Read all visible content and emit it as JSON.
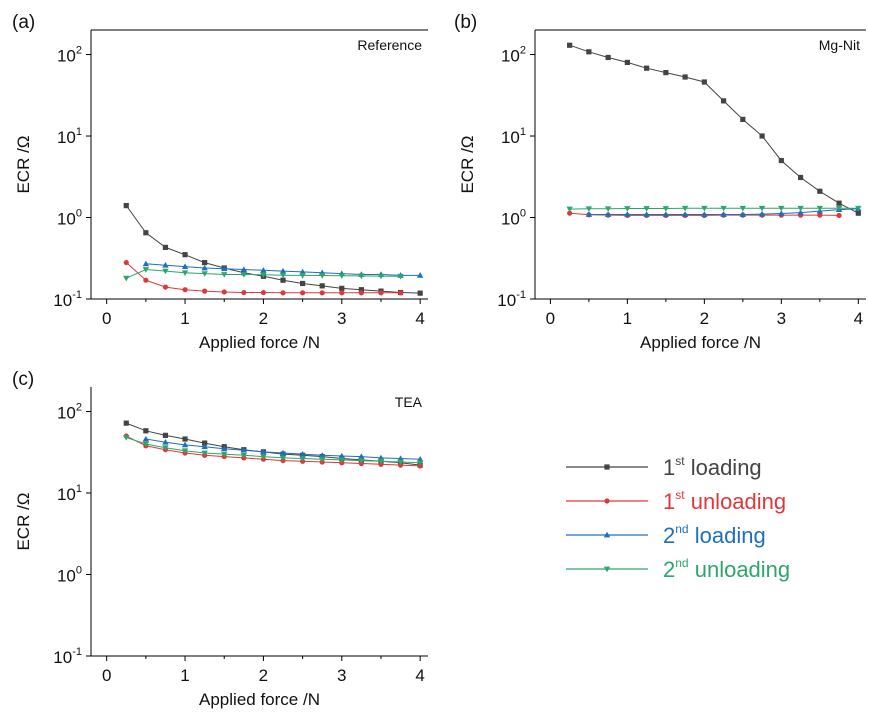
{
  "series_styles": [
    {
      "color": "#444444",
      "marker": "square"
    },
    {
      "color": "#e0383a",
      "marker": "circle"
    },
    {
      "color": "#1f6fc0",
      "marker": "triangle-up"
    },
    {
      "color": "#2ea66b",
      "marker": "triangle-down"
    }
  ],
  "legend": {
    "entries": [
      {
        "num": "1",
        "sup": "st",
        "word": "loading",
        "color": "#444444"
      },
      {
        "num": "1",
        "sup": "st",
        "word": "unloading",
        "color": "#e0383a"
      },
      {
        "num": "2",
        "sup": "nd",
        "word": "loading",
        "color": "#1f6fc0"
      },
      {
        "num": "2",
        "sup": "nd",
        "word": "unloading",
        "color": "#2ea66b"
      }
    ]
  },
  "chart_data": [
    {
      "type": "line",
      "panel_label": "(a)",
      "annotation": "Reference",
      "xlabel": "Applied force /N",
      "ylabel": "ECR /Ω",
      "yscale": "log",
      "xlim": [
        -0.2,
        4.1
      ],
      "ylim": [
        0.1,
        200
      ],
      "xticks": [
        0,
        1,
        2,
        3,
        4
      ],
      "yticks": [
        {
          "base": "10",
          "exp": "2",
          "v": 100
        },
        {
          "base": "10",
          "exp": "1",
          "v": 10
        },
        {
          "base": "10",
          "exp": "0",
          "v": 1
        },
        {
          "base": "10",
          "exp": "-1",
          "v": 0.1
        }
      ],
      "series": [
        {
          "x": [
            0.25,
            0.5,
            0.75,
            1.0,
            1.25,
            1.5,
            1.75,
            2.0,
            2.25,
            2.5,
            2.75,
            3.0,
            3.25,
            3.5,
            3.75,
            4.0
          ],
          "values": [
            1.4,
            0.65,
            0.43,
            0.35,
            0.28,
            0.24,
            0.21,
            0.19,
            0.17,
            0.155,
            0.145,
            0.135,
            0.13,
            0.125,
            0.12,
            0.118
          ]
        },
        {
          "x": [
            0.25,
            0.5,
            0.75,
            1.0,
            1.25,
            1.5,
            1.75,
            2.0,
            2.25,
            2.5,
            2.75,
            3.0,
            3.25,
            3.5,
            3.75
          ],
          "values": [
            0.28,
            0.17,
            0.14,
            0.13,
            0.125,
            0.122,
            0.12,
            0.12,
            0.119,
            0.119,
            0.119,
            0.119,
            0.119,
            0.119,
            0.119
          ]
        },
        {
          "x": [
            0.5,
            0.75,
            1.0,
            1.25,
            1.5,
            1.75,
            2.0,
            2.25,
            2.5,
            2.75,
            3.0,
            3.25,
            3.5,
            3.75,
            4.0
          ],
          "values": [
            0.27,
            0.26,
            0.25,
            0.24,
            0.235,
            0.23,
            0.225,
            0.22,
            0.215,
            0.21,
            0.205,
            0.2,
            0.2,
            0.195,
            0.195
          ]
        },
        {
          "x": [
            0.25,
            0.5,
            0.75,
            1.0,
            1.25,
            1.5,
            1.75,
            2.0,
            2.25,
            2.5,
            2.75,
            3.0,
            3.25,
            3.5,
            3.75
          ],
          "values": [
            0.18,
            0.23,
            0.22,
            0.21,
            0.205,
            0.2,
            0.2,
            0.198,
            0.196,
            0.195,
            0.194,
            0.193,
            0.192,
            0.191,
            0.19
          ]
        }
      ]
    },
    {
      "type": "line",
      "panel_label": "(b)",
      "annotation": "Mg-Nit",
      "xlabel": "Applied force /N",
      "ylabel": "ECR /Ω",
      "yscale": "log",
      "xlim": [
        -0.2,
        4.1
      ],
      "ylim": [
        0.1,
        200
      ],
      "xticks": [
        0,
        1,
        2,
        3,
        4
      ],
      "yticks": [
        {
          "base": "10",
          "exp": "2",
          "v": 100
        },
        {
          "base": "10",
          "exp": "1",
          "v": 10
        },
        {
          "base": "10",
          "exp": "0",
          "v": 1
        },
        {
          "base": "10",
          "exp": "-1",
          "v": 0.1
        }
      ],
      "series": [
        {
          "x": [
            0.25,
            0.5,
            0.75,
            1.0,
            1.25,
            1.5,
            1.75,
            2.0,
            2.25,
            2.5,
            2.75,
            3.0,
            3.25,
            3.5,
            3.75,
            4.0
          ],
          "values": [
            130,
            108,
            92,
            80,
            68,
            60,
            53,
            46,
            27,
            16,
            10,
            5,
            3.1,
            2.1,
            1.5,
            1.13
          ]
        },
        {
          "x": [
            0.25,
            0.5,
            0.75,
            1.0,
            1.25,
            1.5,
            1.75,
            2.0,
            2.25,
            2.5,
            2.75,
            3.0,
            3.25,
            3.5,
            3.75
          ],
          "values": [
            1.13,
            1.08,
            1.07,
            1.06,
            1.06,
            1.06,
            1.06,
            1.06,
            1.07,
            1.07,
            1.07,
            1.07,
            1.07,
            1.07,
            1.06
          ]
        },
        {
          "x": [
            0.5,
            0.75,
            1.0,
            1.25,
            1.5,
            1.75,
            2.0,
            2.25,
            2.5,
            2.75,
            3.0,
            3.25,
            3.5,
            3.75,
            4.0
          ],
          "values": [
            1.09,
            1.09,
            1.09,
            1.09,
            1.09,
            1.09,
            1.09,
            1.09,
            1.09,
            1.1,
            1.12,
            1.15,
            1.2,
            1.25,
            1.28
          ]
        },
        {
          "x": [
            0.25,
            0.5,
            0.75,
            1.0,
            1.25,
            1.5,
            1.75,
            2.0,
            2.25,
            2.5,
            2.75,
            3.0,
            3.25,
            3.5,
            3.75,
            4.0
          ],
          "values": [
            1.27,
            1.28,
            1.28,
            1.29,
            1.29,
            1.29,
            1.3,
            1.3,
            1.3,
            1.3,
            1.3,
            1.3,
            1.3,
            1.3,
            1.3,
            1.3
          ]
        }
      ]
    },
    {
      "type": "line",
      "panel_label": "(c)",
      "annotation": "TEA",
      "xlabel": "Applied force /N",
      "ylabel": "ECR /Ω",
      "yscale": "log",
      "xlim": [
        -0.2,
        4.1
      ],
      "ylim": [
        0.1,
        200
      ],
      "xticks": [
        0,
        1,
        2,
        3,
        4
      ],
      "yticks": [
        {
          "base": "10",
          "exp": "2",
          "v": 100
        },
        {
          "base": "10",
          "exp": "1",
          "v": 10
        },
        {
          "base": "10",
          "exp": "0",
          "v": 1
        },
        {
          "base": "10",
          "exp": "-1",
          "v": 0.1
        }
      ],
      "series": [
        {
          "x": [
            0.25,
            0.5,
            0.75,
            1.0,
            1.25,
            1.5,
            1.75,
            2.0,
            2.25,
            2.5,
            2.75,
            3.0,
            3.25,
            3.5,
            3.75,
            4.0
          ],
          "values": [
            72,
            58,
            51,
            46,
            41,
            37,
            34,
            32,
            30,
            29,
            28,
            26.5,
            25.5,
            24.5,
            23.5,
            22
          ]
        },
        {
          "x": [
            0.25,
            0.5,
            0.75,
            1.0,
            1.25,
            1.5,
            1.75,
            2.0,
            2.25,
            2.5,
            2.75,
            3.0,
            3.25,
            3.5,
            3.75,
            4.0
          ],
          "values": [
            50,
            38,
            34,
            31,
            29,
            28,
            27,
            26,
            25,
            24.5,
            24,
            23.5,
            23,
            22.5,
            22,
            21.5
          ]
        },
        {
          "x": [
            0.5,
            0.75,
            1.0,
            1.25,
            1.5,
            1.75,
            2.0,
            2.25,
            2.5,
            2.75,
            3.0,
            3.25,
            3.5,
            3.75,
            4.0
          ],
          "values": [
            46,
            42,
            39,
            37,
            35,
            33.5,
            32,
            31,
            30,
            29,
            28.5,
            28,
            27,
            26.5,
            26
          ]
        },
        {
          "x": [
            0.25,
            0.5,
            0.75,
            1.0,
            1.25,
            1.5,
            1.75,
            2.0,
            2.25,
            2.5,
            2.75,
            3.0,
            3.25,
            3.5,
            3.75,
            4.0
          ],
          "values": [
            48,
            40,
            36,
            33,
            31,
            30,
            29,
            28,
            27,
            26.5,
            26,
            25.5,
            25,
            24.5,
            24,
            23.5
          ]
        }
      ]
    }
  ]
}
